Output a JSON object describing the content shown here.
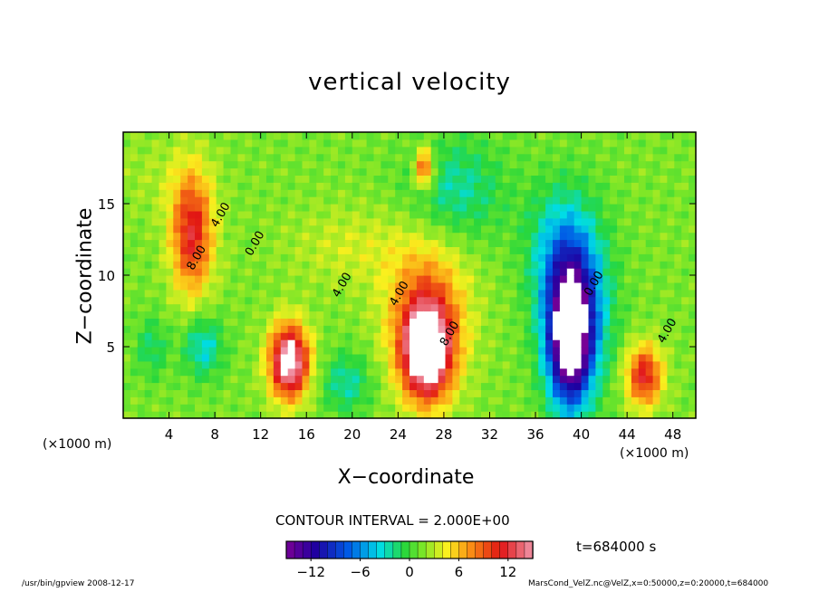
{
  "chart_data": {
    "type": "heatmap",
    "title": "vertical velocity",
    "xlabel": "X−coordinate",
    "ylabel": "Z−coordinate",
    "x_unit_label": "(×1000 m)",
    "xlim": [
      0,
      50
    ],
    "ylim": [
      0,
      20
    ],
    "x_ticks": [
      4,
      8,
      12,
      16,
      20,
      24,
      28,
      32,
      36,
      40,
      44,
      48
    ],
    "y_ticks": [
      5,
      10,
      15
    ],
    "contour_interval_text": "CONTOUR INTERVAL = 2.000E+00",
    "time_text": "t=684000 s",
    "colorbar": {
      "min": -15,
      "max": 15,
      "ticks": [
        -12,
        -6,
        0,
        6,
        12
      ],
      "tick_labels": [
        "−12",
        "−6",
        "0",
        "6",
        "12"
      ]
    },
    "contour_labels": [
      {
        "x": 8.2,
        "z": 13.3,
        "text": "4.00"
      },
      {
        "x": 6.1,
        "z": 10.3,
        "text": "8.00"
      },
      {
        "x": 11.2,
        "z": 11.3,
        "text": "0.00"
      },
      {
        "x": 18.8,
        "z": 8.4,
        "text": "4.00"
      },
      {
        "x": 23.8,
        "z": 7.8,
        "text": "4.00"
      },
      {
        "x": 28.2,
        "z": 5.0,
        "text": "8.00"
      },
      {
        "x": 40.8,
        "z": 8.5,
        "text": "0.00"
      },
      {
        "x": 47.2,
        "z": 5.2,
        "text": "4.00"
      }
    ],
    "features": [
      {
        "x": 6,
        "z": 13,
        "value": 10,
        "sx": 1.3,
        "sz": 3.0
      },
      {
        "x": 14.5,
        "z": 4,
        "value": 16,
        "sx": 1.2,
        "sz": 1.8
      },
      {
        "x": 26.5,
        "z": 4.6,
        "value": 16,
        "sx": 1.5,
        "sz": 2.3
      },
      {
        "x": 26.5,
        "z": 7.5,
        "value": 7,
        "sx": 2.5,
        "sz": 3.5
      },
      {
        "x": 45.5,
        "z": 3,
        "value": 10,
        "sx": 1.1,
        "sz": 1.5
      },
      {
        "x": 39,
        "z": 5.5,
        "value": -17,
        "sx": 1.3,
        "sz": 3.2
      },
      {
        "x": 39.5,
        "z": 8,
        "value": -9,
        "sx": 2.0,
        "sz": 4.0
      },
      {
        "x": 38,
        "z": 12,
        "value": -4,
        "sx": 2.0,
        "sz": 3.0
      },
      {
        "x": 29,
        "z": 16,
        "value": -4,
        "sx": 3.0,
        "sz": 2.5
      },
      {
        "x": 7,
        "z": 5,
        "value": -5,
        "sx": 1.2,
        "sz": 1.5
      },
      {
        "x": 19.5,
        "z": 2.5,
        "value": -4,
        "sx": 1.5,
        "sz": 1.5
      },
      {
        "x": 2.5,
        "z": 5,
        "value": -3,
        "sx": 1.0,
        "sz": 1.5
      },
      {
        "x": 26.3,
        "z": 17.5,
        "value": 9,
        "sx": 0.6,
        "sz": 1.0
      },
      {
        "x": 20,
        "z": 12,
        "value": 2,
        "sx": 4.0,
        "sz": 2.0
      },
      {
        "x": 3,
        "z": 17,
        "value": 1,
        "sx": 3.0,
        "sz": 2.0
      }
    ]
  },
  "footer": {
    "program": "/usr/bin/gpview   2008-12-17",
    "source": "MarsCond_VelZ.nc@VelZ,x=0:50000,z=0:20000,t=684000"
  }
}
